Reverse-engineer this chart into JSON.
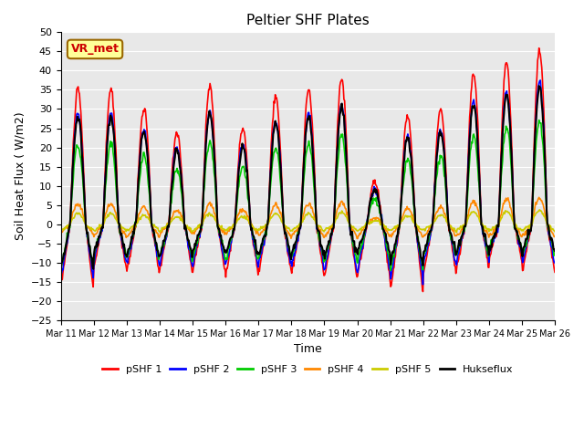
{
  "title": "Peltier SHF Plates",
  "xlabel": "Time",
  "ylabel": "Soil Heat Flux ( W/m2)",
  "ylim": [
    -25,
    50
  ],
  "yticks": [
    -25,
    -20,
    -15,
    -10,
    -5,
    0,
    5,
    10,
    15,
    20,
    25,
    30,
    35,
    40,
    45,
    50
  ],
  "xtick_positions": [
    0,
    1,
    2,
    3,
    4,
    5,
    6,
    7,
    8,
    9,
    10,
    11,
    12,
    13,
    14,
    15
  ],
  "xtick_labels": [
    "Mar 11",
    "Mar 12",
    "Mar 13",
    "Mar 14",
    "Mar 15",
    "Mar 16",
    "Mar 17",
    "Mar 18",
    "Mar 19",
    "Mar 20",
    "Mar 21",
    "Mar 22",
    "Mar 23",
    "Mar 24",
    "Mar 25",
    "Mar 26"
  ],
  "n_days": 15,
  "colors": {
    "pSHF1": "#ff0000",
    "pSHF2": "#0000ff",
    "pSHF3": "#00cc00",
    "pSHF4": "#ff8800",
    "pSHF5": "#cccc00",
    "Hukseflux": "#000000"
  },
  "bg_color": "#e8e8e8",
  "annotation_text": "VR_met",
  "annotation_color": "#cc0000",
  "annotation_bg": "#ffff99",
  "annotation_border": "#996600",
  "peaks1": [
    35,
    35,
    30,
    24,
    36,
    25,
    33,
    35,
    38,
    11,
    28,
    30,
    39,
    42,
    45
  ],
  "nights1": [
    -20,
    -14,
    -15,
    -15,
    -15,
    -16,
    -15,
    -16,
    -17,
    -17,
    -21,
    -15,
    -14,
    -11,
    -15
  ],
  "peaks2_scale": 0.82,
  "nights2_scale": 0.85,
  "peaks3_scale": 0.6,
  "nights3_scale": 0.7,
  "peaks4_scale": 0.15,
  "nights4": [
    -3,
    -4,
    -4,
    -3,
    -3,
    -3,
    -4,
    -4,
    -4,
    -4,
    -4,
    -4,
    -4,
    -4,
    -4
  ],
  "peaks5_scale": 0.08,
  "nights5": [
    -2,
    -2,
    -2,
    -2,
    -2,
    -2,
    -2,
    -2,
    -2,
    -2,
    -2,
    -2,
    -2,
    -2,
    -2
  ],
  "peaksH_scale": 0.8,
  "nightsH": [
    -14,
    -10,
    -10,
    -10,
    -9,
    -10,
    -10,
    -10,
    -10,
    -9,
    -13,
    -9,
    -9,
    -8,
    -9
  ]
}
